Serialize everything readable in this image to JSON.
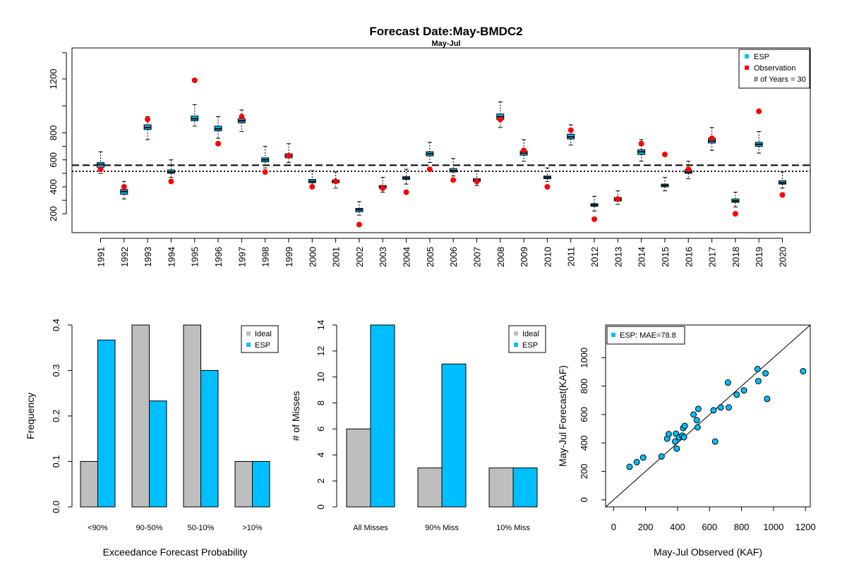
{
  "colors": {
    "esp": "#00bfff",
    "observation": "#ff0000",
    "ideal": "#bebebe",
    "axis": "#000000"
  },
  "chart_data": [
    {
      "type": "box",
      "title": "Forecast Date:May-BMDC2",
      "subtitle": "May-Jul",
      "categories": [
        "1991",
        "1992",
        "1993",
        "1994",
        "1995",
        "1996",
        "1997",
        "1998",
        "1999",
        "2000",
        "2001",
        "2002",
        "2003",
        "2004",
        "2005",
        "2006",
        "2007",
        "2008",
        "2009",
        "2010",
        "2011",
        "2012",
        "2013",
        "2014",
        "2015",
        "2016",
        "2017",
        "2018",
        "2019",
        "2020"
      ],
      "ylim": [
        60,
        1430
      ],
      "yticks": [
        200,
        400,
        600,
        800,
        1200
      ],
      "esp_boxes": [
        {
          "min": 500,
          "q1": 545,
          "median": 565,
          "q3": 580,
          "max": 660
        },
        {
          "min": 310,
          "q1": 345,
          "median": 365,
          "q3": 380,
          "max": 440
        },
        {
          "min": 750,
          "q1": 825,
          "median": 840,
          "q3": 860,
          "max": 920
        },
        {
          "min": 470,
          "q1": 500,
          "median": 510,
          "q3": 525,
          "max": 600
        },
        {
          "min": 850,
          "q1": 890,
          "median": 905,
          "q3": 925,
          "max": 1010
        },
        {
          "min": 760,
          "q1": 815,
          "median": 830,
          "q3": 850,
          "max": 920
        },
        {
          "min": 810,
          "q1": 875,
          "median": 890,
          "q3": 905,
          "max": 970
        },
        {
          "min": 540,
          "q1": 585,
          "median": 600,
          "q3": 615,
          "max": 700
        },
        {
          "min": 580,
          "q1": 615,
          "median": 630,
          "q3": 645,
          "max": 720
        },
        {
          "min": 410,
          "q1": 430,
          "median": 440,
          "q3": 455,
          "max": 520
        },
        {
          "min": 390,
          "q1": 430,
          "median": 440,
          "q3": 450,
          "max": 510
        },
        {
          "min": 190,
          "q1": 215,
          "median": 230,
          "q3": 240,
          "max": 290
        },
        {
          "min": 360,
          "q1": 390,
          "median": 400,
          "q3": 410,
          "max": 470
        },
        {
          "min": 420,
          "q1": 455,
          "median": 465,
          "q3": 475,
          "max": 530
        },
        {
          "min": 580,
          "q1": 630,
          "median": 645,
          "q3": 660,
          "max": 730
        },
        {
          "min": 480,
          "q1": 510,
          "median": 520,
          "q3": 535,
          "max": 610
        },
        {
          "min": 410,
          "q1": 440,
          "median": 450,
          "q3": 460,
          "max": 520
        },
        {
          "min": 840,
          "q1": 900,
          "median": 920,
          "q3": 940,
          "max": 1030
        },
        {
          "min": 590,
          "q1": 635,
          "median": 650,
          "q3": 665,
          "max": 750
        },
        {
          "min": 440,
          "q1": 460,
          "median": 470,
          "q3": 480,
          "max": 540
        },
        {
          "min": 710,
          "q1": 755,
          "median": 770,
          "q3": 790,
          "max": 860
        },
        {
          "min": 220,
          "q1": 255,
          "median": 265,
          "q3": 275,
          "max": 330
        },
        {
          "min": 270,
          "q1": 295,
          "median": 305,
          "q3": 320,
          "max": 370
        },
        {
          "min": 590,
          "q1": 640,
          "median": 660,
          "q3": 675,
          "max": 750
        },
        {
          "min": 370,
          "q1": 400,
          "median": 410,
          "q3": 420,
          "max": 470
        },
        {
          "min": 460,
          "q1": 500,
          "median": 510,
          "q3": 525,
          "max": 590
        },
        {
          "min": 670,
          "q1": 725,
          "median": 740,
          "q3": 760,
          "max": 840
        },
        {
          "min": 250,
          "q1": 285,
          "median": 295,
          "q3": 310,
          "max": 360
        },
        {
          "min": 650,
          "q1": 700,
          "median": 715,
          "q3": 730,
          "max": 810
        },
        {
          "min": 390,
          "q1": 420,
          "median": 430,
          "q3": 445,
          "max": 510
        }
      ],
      "observations": [
        530,
        400,
        900,
        440,
        1190,
        720,
        920,
        510,
        630,
        400,
        440,
        120,
        390,
        360,
        530,
        450,
        440,
        900,
        670,
        400,
        820,
        160,
        310,
        720,
        640,
        530,
        760,
        200,
        960,
        340
      ],
      "reference_lines": [
        560,
        515
      ],
      "legend": {
        "items": [
          {
            "label": "ESP",
            "color": "#00bfff",
            "shape": "square"
          },
          {
            "label": "Observation",
            "color": "#ff0000",
            "shape": "square"
          }
        ],
        "note": "# of Years = 30",
        "position": "top-right"
      }
    },
    {
      "type": "bar",
      "xlabel": "Exceedance Forecast Probability",
      "ylabel": "Frequency",
      "categories": [
        "<90%",
        "90-50%",
        "50-10%",
        ">10%"
      ],
      "series": [
        {
          "name": "Ideal",
          "color": "#bebebe",
          "values": [
            0.1,
            0.4,
            0.4,
            0.1
          ]
        },
        {
          "name": "ESP",
          "color": "#00bfff",
          "values": [
            0.367,
            0.233,
            0.3,
            0.1
          ]
        }
      ],
      "ylim": [
        0,
        0.4
      ],
      "yticks": [
        "0.0",
        "0.1",
        "0.2",
        "0.3",
        "0.4"
      ],
      "legend_position": "top-right"
    },
    {
      "type": "bar",
      "ylabel": "# of Misses",
      "categories": [
        "All Misses",
        "90% Miss",
        "10% Miss"
      ],
      "series": [
        {
          "name": "Ideal",
          "color": "#bebebe",
          "values": [
            6,
            3,
            3
          ]
        },
        {
          "name": "ESP",
          "color": "#00bfff",
          "values": [
            14,
            11,
            3
          ]
        }
      ],
      "ylim": [
        0,
        14
      ],
      "yticks": [
        "0",
        "2",
        "4",
        "6",
        "8",
        "10",
        "12",
        "14"
      ],
      "legend_position": "top-right"
    },
    {
      "type": "scatter",
      "xlabel": "May-Jul Observed (KAF)",
      "ylabel": "May-Jul Forecast(KAF)",
      "xlim": [
        -50,
        1230
      ],
      "ylim": [
        -50,
        1230
      ],
      "xticks": [
        "0",
        "200",
        "400",
        "600",
        "800",
        "1000",
        "1200"
      ],
      "yticks": [
        "0",
        "200",
        "400",
        "600",
        "800",
        "1000"
      ],
      "legend": "ESP: MAE=78.8",
      "legend_position": "top-left",
      "points": [
        {
          "x": 100,
          "y": 232
        },
        {
          "x": 145,
          "y": 265
        },
        {
          "x": 185,
          "y": 297
        },
        {
          "x": 300,
          "y": 305
        },
        {
          "x": 335,
          "y": 430
        },
        {
          "x": 345,
          "y": 462
        },
        {
          "x": 385,
          "y": 410
        },
        {
          "x": 390,
          "y": 465
        },
        {
          "x": 395,
          "y": 360
        },
        {
          "x": 410,
          "y": 440
        },
        {
          "x": 430,
          "y": 452
        },
        {
          "x": 435,
          "y": 505
        },
        {
          "x": 440,
          "y": 440
        },
        {
          "x": 445,
          "y": 520
        },
        {
          "x": 500,
          "y": 600
        },
        {
          "x": 520,
          "y": 560
        },
        {
          "x": 525,
          "y": 510
        },
        {
          "x": 530,
          "y": 640
        },
        {
          "x": 625,
          "y": 630
        },
        {
          "x": 635,
          "y": 410
        },
        {
          "x": 670,
          "y": 650
        },
        {
          "x": 715,
          "y": 825
        },
        {
          "x": 720,
          "y": 650
        },
        {
          "x": 770,
          "y": 740
        },
        {
          "x": 815,
          "y": 770
        },
        {
          "x": 900,
          "y": 920
        },
        {
          "x": 905,
          "y": 835
        },
        {
          "x": 950,
          "y": 890
        },
        {
          "x": 960,
          "y": 710
        },
        {
          "x": 1185,
          "y": 905
        }
      ]
    }
  ]
}
